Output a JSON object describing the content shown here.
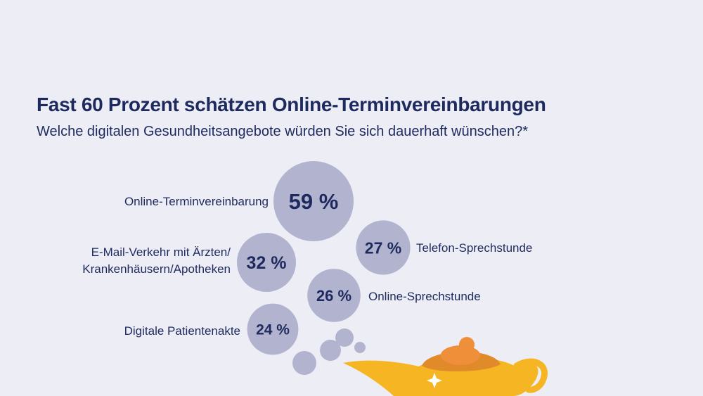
{
  "chart_data": {
    "type": "bubble",
    "title": "Fast 60 Prozent schätzen Online-Terminvereinbarungen",
    "subtitle": "Welche digitalen Gesundheitsangebote würden Sie sich dauerhaft wünschen?*",
    "unit": "%",
    "items": [
      {
        "label": "Online-Terminvereinbarung",
        "value": 59,
        "display": "59 %"
      },
      {
        "label": "Telefon-Sprechstunde",
        "value": 27,
        "display": "27 %"
      },
      {
        "label_lines": [
          "E-Mail-Verkehr mit Ärzten/",
          "Krankenhäusern/Apotheken"
        ],
        "value": 32,
        "display": "32 %"
      },
      {
        "label": "Online-Sprechstunde",
        "value": 26,
        "display": "26 %"
      },
      {
        "label": "Digitale Patientenakte",
        "value": 24,
        "display": "24 %"
      }
    ],
    "colors": {
      "background": "#edeef5",
      "bubble": "#b2b4cf",
      "text": "#1e2a5e",
      "lamp_body": "#f6b624",
      "lamp_shade": "#e08a2a",
      "lamp_lid": "#f08f3a"
    }
  }
}
